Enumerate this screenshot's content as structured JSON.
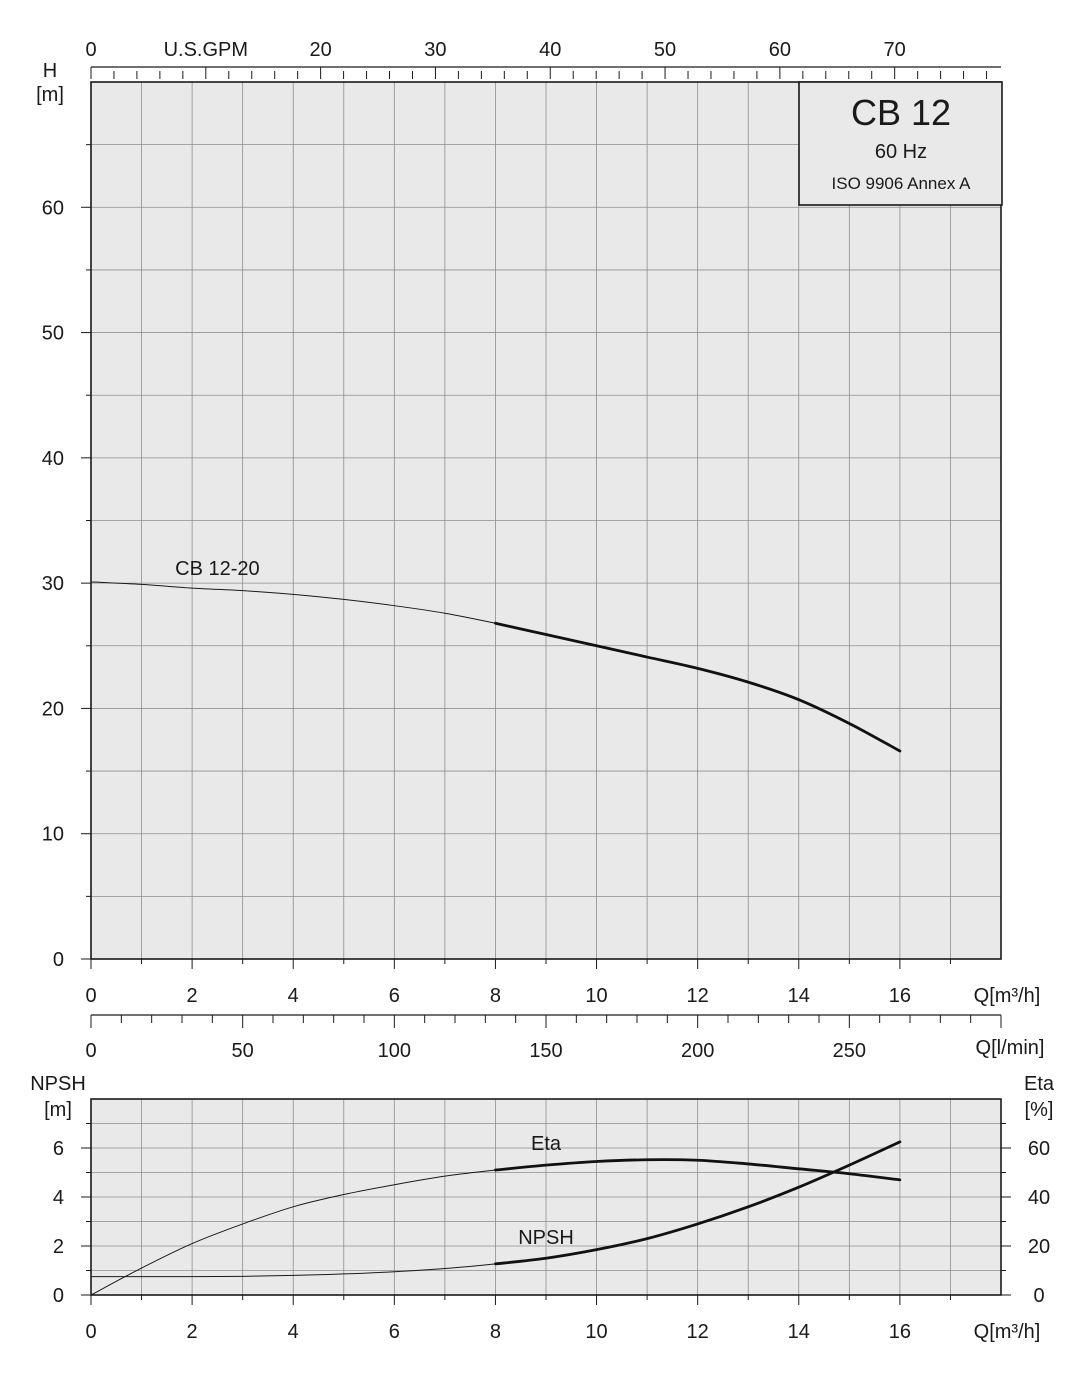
{
  "info_box": {
    "model": "CB 12",
    "frequency": "60 Hz",
    "standard": "ISO 9906 Annex A"
  },
  "chart_data": [
    {
      "type": "line",
      "name": "head-curve",
      "x_unit_label": "Q[m³/h]",
      "ylabel_main": "H",
      "ylabel_unit": "[m]",
      "xlim": [
        0,
        18
      ],
      "ylim": [
        0,
        70
      ],
      "x_ticks": [
        0,
        2,
        4,
        6,
        8,
        10,
        12,
        14,
        16
      ],
      "y_ticks": [
        0,
        10,
        20,
        30,
        40,
        50,
        60
      ],
      "top_axis": {
        "label": "U.S.GPM",
        "ticks": [
          0,
          20,
          30,
          40,
          50,
          60,
          70
        ],
        "conversion_m3h_per_unit": 0.2271
      },
      "secondary_bottom_axis": {
        "label": "Q[l/min]",
        "ticks": [
          0,
          50,
          100,
          150,
          200,
          250
        ],
        "conversion_m3h_per_unit": 0.06
      },
      "series": [
        {
          "name": "CB 12-20",
          "points": [
            [
              0,
              30.1
            ],
            [
              1,
              29.9
            ],
            [
              2,
              29.6
            ],
            [
              3,
              29.4
            ],
            [
              4,
              29.1
            ],
            [
              5,
              28.7
            ],
            [
              6,
              28.2
            ],
            [
              7,
              27.6
            ],
            [
              8,
              26.8
            ],
            [
              9,
              25.9
            ],
            [
              10,
              25.0
            ],
            [
              11,
              24.1
            ],
            [
              12,
              23.2
            ],
            [
              13,
              22.1
            ],
            [
              14,
              20.7
            ],
            [
              15,
              18.8
            ],
            [
              16,
              16.6
            ]
          ],
          "thick_from_x": 8
        }
      ]
    },
    {
      "type": "line",
      "name": "npsh-eta-curve",
      "x_unit_label": "Q[m³/h]",
      "xlim": [
        0,
        18
      ],
      "x_ticks": [
        0,
        2,
        4,
        6,
        8,
        10,
        12,
        14,
        16
      ],
      "left_axis": {
        "title": "NPSH",
        "unit": "[m]",
        "ylim": [
          0,
          8
        ],
        "ticks": [
          0,
          2,
          4,
          6
        ]
      },
      "right_axis": {
        "title": "Eta",
        "unit": "[%]",
        "ylim": [
          0,
          80
        ],
        "ticks": [
          0,
          20,
          40,
          60
        ]
      },
      "series": [
        {
          "name": "Eta",
          "axis": "right",
          "points": [
            [
              0,
              0
            ],
            [
              1,
              11
            ],
            [
              2,
              21
            ],
            [
              3,
              29
            ],
            [
              4,
              36
            ],
            [
              5,
              41
            ],
            [
              6,
              45
            ],
            [
              7,
              48.5
            ],
            [
              8,
              51
            ],
            [
              9,
              53
            ],
            [
              10,
              54.5
            ],
            [
              11,
              55.2
            ],
            [
              12,
              55
            ],
            [
              13,
              53.5
            ],
            [
              14,
              51.5
            ],
            [
              15,
              49.5
            ],
            [
              16,
              47
            ]
          ],
          "thick_from_x": 8
        },
        {
          "name": "NPSH",
          "axis": "left",
          "points": [
            [
              0,
              0.75
            ],
            [
              1,
              0.75
            ],
            [
              2,
              0.75
            ],
            [
              3,
              0.76
            ],
            [
              4,
              0.8
            ],
            [
              5,
              0.86
            ],
            [
              6,
              0.95
            ],
            [
              7,
              1.08
            ],
            [
              8,
              1.27
            ],
            [
              9,
              1.5
            ],
            [
              10,
              1.85
            ],
            [
              11,
              2.3
            ],
            [
              12,
              2.9
            ],
            [
              13,
              3.6
            ],
            [
              14,
              4.4
            ],
            [
              15,
              5.3
            ],
            [
              16,
              6.25
            ]
          ],
          "thick_from_x": 8
        }
      ]
    }
  ]
}
